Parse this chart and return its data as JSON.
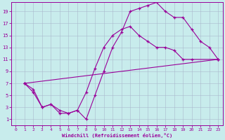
{
  "xlabel": "Windchill (Refroidissement éolien,°C)",
  "bg_color": "#c8ecec",
  "line_color": "#990099",
  "grid_color": "#aab8cc",
  "xlim": [
    -0.5,
    23.5
  ],
  "ylim": [
    0.0,
    20.5
  ],
  "xticks": [
    0,
    1,
    2,
    3,
    4,
    5,
    6,
    7,
    8,
    9,
    10,
    11,
    12,
    13,
    14,
    15,
    16,
    17,
    18,
    19,
    20,
    21,
    22,
    23
  ],
  "yticks": [
    1,
    3,
    5,
    7,
    9,
    11,
    13,
    15,
    17,
    19
  ],
  "line1_x": [
    1,
    2,
    3,
    4,
    5,
    6,
    7,
    8,
    9,
    10,
    11,
    12,
    13,
    14,
    15,
    16,
    17,
    18,
    19,
    20,
    21,
    22,
    23
  ],
  "line1_y": [
    7,
    6,
    3,
    3.5,
    2,
    2,
    2.5,
    1,
    5,
    9,
    13,
    15.5,
    19,
    19.5,
    20,
    20.5,
    19,
    18,
    18,
    16,
    14,
    13,
    11
  ],
  "line2_x": [
    1,
    2,
    3,
    4,
    5,
    6,
    7,
    8,
    9,
    10,
    11,
    12,
    13,
    14,
    15,
    16,
    17,
    18,
    19,
    20,
    23
  ],
  "line2_y": [
    7,
    5.5,
    3.0,
    3.5,
    2.5,
    2.0,
    2.5,
    5.5,
    9.5,
    13,
    15,
    16,
    16.5,
    15,
    14,
    13,
    13,
    12.5,
    11,
    11,
    11
  ],
  "line3_x": [
    1,
    23
  ],
  "line3_y": [
    7,
    11
  ]
}
